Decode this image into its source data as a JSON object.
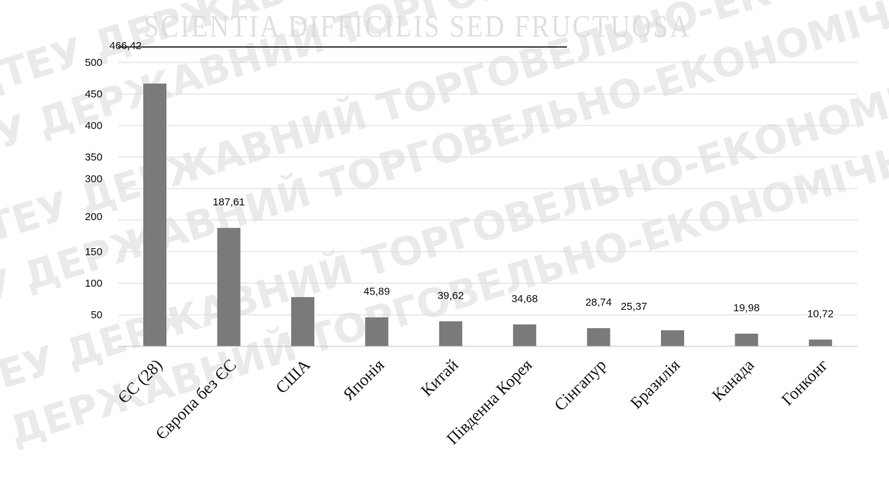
{
  "watermark": {
    "motto": "SCIENTIA DIFFICILIS SED FRUCTUOSA",
    "text": "ДТЕУ ДЕРЖАВНИЙ ТОРГОВЕЛЬНО-ЕКОНОМІЧНИЙ УНІВЕРСИТЕТ"
  },
  "colors": {
    "bar": "#7a7a7a",
    "grid": "#d9d9d9",
    "axis": "#bfbfbf",
    "watermark": "#d9d9d9"
  },
  "chart_data": {
    "type": "bar",
    "title": "",
    "xlabel": "",
    "ylabel": "",
    "grid": true,
    "legend": "none",
    "ylim": [
      0,
      500
    ],
    "yticks": [
      {
        "label": "500",
        "value": 500
      },
      {
        "label": "450",
        "value": 450
      },
      {
        "label": "400",
        "value": 400
      },
      {
        "label": "350",
        "value": 350
      },
      {
        "label": "300",
        "value": 300
      },
      {
        "label": "200",
        "value": 200
      },
      {
        "label": "150",
        "value": 150
      },
      {
        "label": "100",
        "value": 100
      },
      {
        "label": "50",
        "value": 50
      }
    ],
    "categories": [
      "ЄС (28)",
      "Європа без ЄС",
      "США",
      "Японія",
      "Китай",
      "Південна Корея",
      "Сінгапур",
      "Бразилія",
      "Канада",
      "Гонконг"
    ],
    "values": [
      466.42,
      187.61,
      78,
      45.89,
      39.62,
      34.68,
      28.74,
      25.37,
      19.98,
      10.72
    ],
    "data_labels": [
      "466,42",
      "187,61",
      "",
      "45,89",
      "39,62",
      "34,68",
      "28,74",
      "25,37",
      "19,98",
      "10,72"
    ]
  }
}
